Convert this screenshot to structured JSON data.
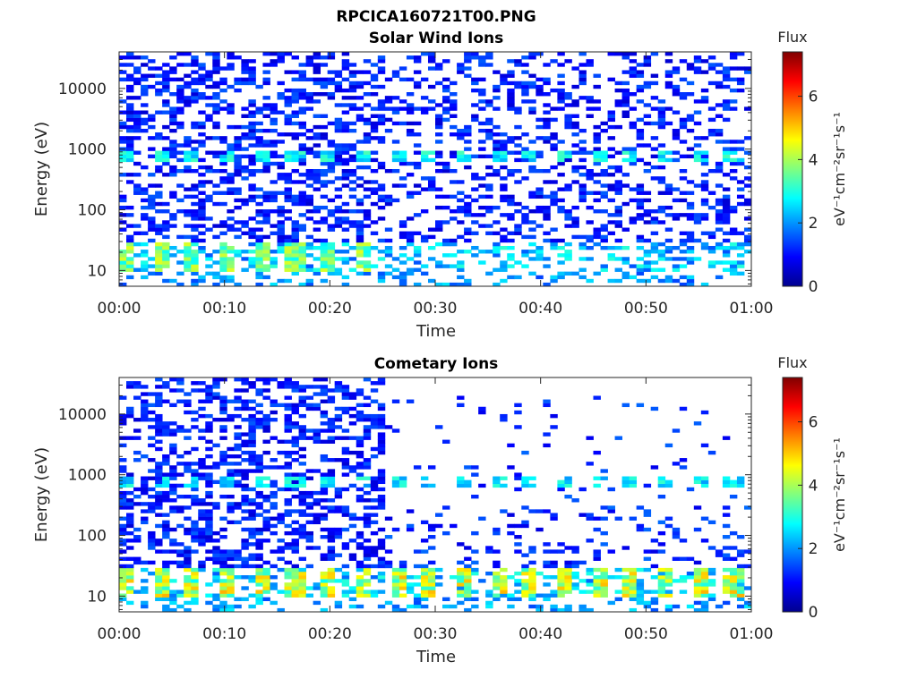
{
  "figure": {
    "title": "RPCICA160721T00.PNG"
  },
  "chart_data": [
    {
      "type": "heatmap",
      "title": "Solar Wind Ions",
      "xlabel": "Time",
      "ylabel": "Energy (eV)",
      "x_ticks": [
        "00:00",
        "00:10",
        "00:20",
        "00:30",
        "00:40",
        "00:50",
        "01:00"
      ],
      "xlim_minutes": [
        0,
        60
      ],
      "y_scale": "log",
      "ylim": [
        5.5,
        40000
      ],
      "y_ticks": [
        "10",
        "100",
        "1000",
        "10000"
      ],
      "colorbar": {
        "title": "Flux",
        "label": "eV⁻¹cm⁻²sr⁻¹s⁻¹",
        "range": [
          0,
          7.4
        ],
        "ticks": [
          "0",
          "2",
          "4",
          "6"
        ],
        "colormap": "jet"
      },
      "patterns": [
        {
          "desc": "sparse low-flux counts across all energies",
          "e_min": 30,
          "e_max": 40000,
          "t_min": 0,
          "t_max": 60,
          "flux": 1.0
        },
        {
          "desc": "recurring band near 800 eV",
          "e_center": 800,
          "t_period_min": 3.2,
          "flux": 2.8
        },
        {
          "desc": "recurring bright bursts 10-30 eV",
          "e_min": 10,
          "e_max": 30,
          "t_min": 0,
          "t_max": 25,
          "t_period_min": 3.2,
          "flux": 3.9
        },
        {
          "desc": "scattered low-energy counts",
          "e_min": 6,
          "e_max": 30,
          "t_min": 25,
          "t_max": 60,
          "flux": 2.5
        }
      ]
    },
    {
      "type": "heatmap",
      "title": "Cometary Ions",
      "xlabel": "Time",
      "ylabel": "Energy (eV)",
      "x_ticks": [
        "00:00",
        "00:10",
        "00:20",
        "00:30",
        "00:40",
        "00:50",
        "01:00"
      ],
      "xlim_minutes": [
        0,
        60
      ],
      "y_scale": "log",
      "ylim": [
        5.5,
        40000
      ],
      "y_ticks": [
        "10",
        "100",
        "1000",
        "10000"
      ],
      "colorbar": {
        "title": "Flux",
        "label": "eV⁻¹cm⁻²sr⁻¹s⁻¹",
        "range": [
          0,
          7.4
        ],
        "ticks": [
          "0",
          "2",
          "4",
          "6"
        ],
        "colormap": "jet"
      },
      "patterns": [
        {
          "desc": "dense low-flux counts before 00:25",
          "e_min": 30,
          "e_max": 40000,
          "t_min": 0,
          "t_max": 25,
          "flux": 1.0
        },
        {
          "desc": "sparse counts after 00:25",
          "e_min": 30,
          "e_max": 20000,
          "t_min": 25,
          "t_max": 60,
          "flux": 0.9
        },
        {
          "desc": "recurring band near 800 eV",
          "e_center": 800,
          "t_period_min": 3.2,
          "flux": 2.4
        },
        {
          "desc": "recurring bright bursts 10-30 eV",
          "e_min": 10,
          "e_max": 30,
          "t_min": 0,
          "t_max": 60,
          "t_period_min": 3.2,
          "flux": 4.4
        }
      ]
    }
  ]
}
